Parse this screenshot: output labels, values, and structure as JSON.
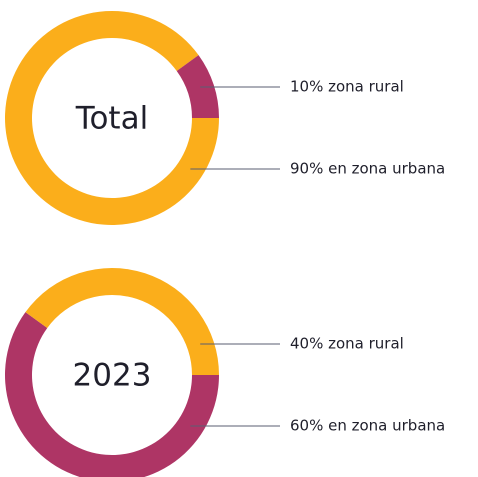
{
  "chart_data": [
    {
      "type": "pie",
      "title": "Total",
      "values": [
        10,
        90
      ],
      "value_labels": [
        "10% zona rural",
        "90% en zona urbana"
      ],
      "colors": [
        "#ae3565",
        "#fbae1b"
      ]
    },
    {
      "type": "pie",
      "title": "2023",
      "values": [
        40,
        60
      ],
      "value_labels": [
        "40% zona rural",
        "60% en zona urbana"
      ],
      "colors": [
        "#fbae1b",
        "#ae3565"
      ]
    }
  ]
}
